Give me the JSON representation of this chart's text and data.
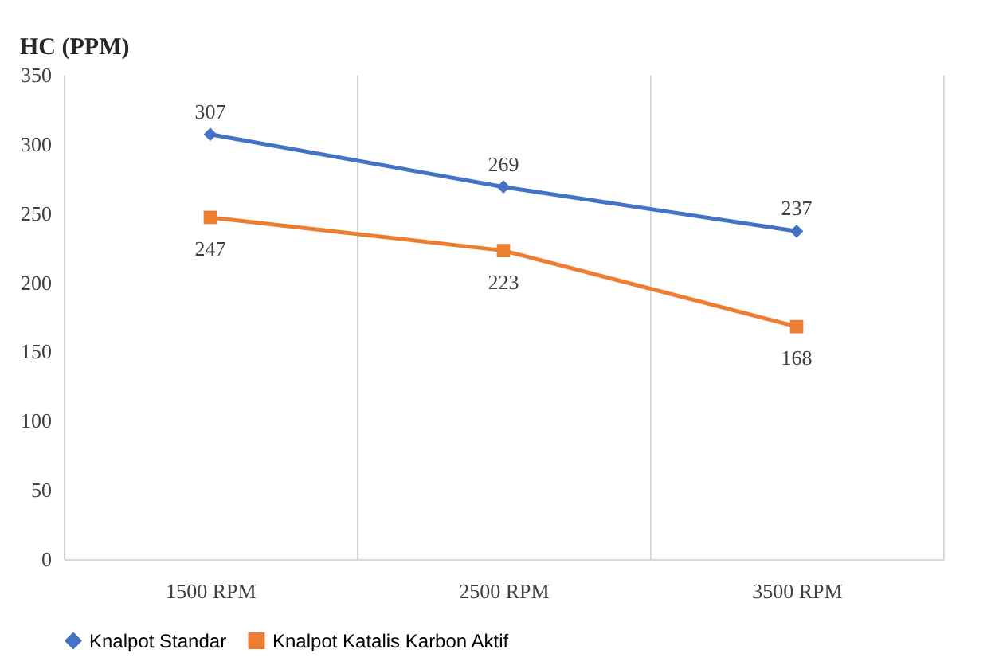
{
  "chart_data": {
    "type": "line",
    "title": "HC (PPM)",
    "categories": [
      "1500  RPM",
      "2500  RPM",
      "3500  RPM"
    ],
    "series": [
      {
        "name": "Knalpot Standar",
        "color": "#4472c4",
        "marker": "diamond",
        "values": [
          307,
          269,
          237
        ]
      },
      {
        "name": "Knalpot Katalis Karbon Aktif",
        "color": "#ed7d31",
        "marker": "square",
        "values": [
          247,
          223,
          168
        ]
      }
    ],
    "ylim": [
      0,
      350
    ],
    "yticks": [
      0,
      50,
      100,
      150,
      200,
      250,
      300,
      350
    ],
    "grid": "x",
    "legend": "bottom",
    "data_labels": true
  }
}
